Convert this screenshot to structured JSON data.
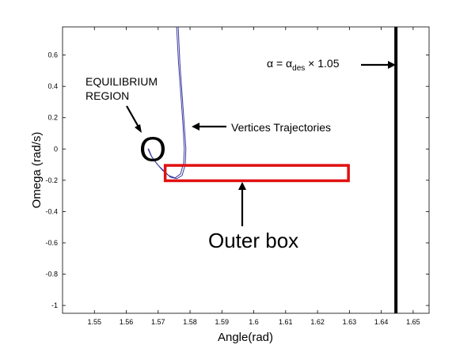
{
  "chart_data": {
    "type": "line",
    "xlabel": "Angle(rad)",
    "ylabel": "Omega (rad/s)",
    "xlim": [
      1.54,
      1.655
    ],
    "ylim": [
      -1.05,
      0.78
    ],
    "xticks": [
      "1.55",
      "1.56",
      "1.57",
      "1.58",
      "1.59",
      "1.6",
      "1.61",
      "1.62",
      "1.63",
      "1.64",
      "1.65"
    ],
    "yticks": [
      "0.6",
      "0.4",
      "0.2",
      "0",
      "-0.2",
      "-0.4",
      "-0.6",
      "-0.8",
      "-1"
    ],
    "grid": false,
    "series": [
      {
        "color": "#3a3aa0",
        "x": [
          1.5763,
          1.5768,
          1.5775,
          1.5782,
          1.5787,
          1.5785,
          1.5775,
          1.5758,
          1.5738,
          1.5718,
          1.5698,
          1.568,
          1.567,
          1.5668
        ],
        "y": [
          0.78,
          0.55,
          0.35,
          0.15,
          0.0,
          -0.1,
          -0.17,
          -0.19,
          -0.18,
          -0.14,
          -0.1,
          -0.05,
          0.0,
          0.0
        ]
      },
      {
        "color": "#3a3aa0",
        "x": [
          1.5758,
          1.5764,
          1.5771,
          1.5778,
          1.5782,
          1.578,
          1.577,
          1.5753,
          1.5733,
          1.5713,
          1.5694,
          1.5677,
          1.5668
        ],
        "y": [
          0.78,
          0.55,
          0.35,
          0.15,
          0.0,
          -0.09,
          -0.16,
          -0.185,
          -0.17,
          -0.135,
          -0.09,
          -0.04,
          0.0
        ]
      }
    ],
    "shapes": [
      {
        "type": "rect",
        "x0": 1.5722,
        "x1": 1.6297,
        "y0": -0.203,
        "y1": -0.105,
        "color": "#e01010"
      },
      {
        "type": "vline",
        "x": 1.6446,
        "color": "#000000"
      },
      {
        "type": "circle",
        "x": 1.5683,
        "y": -0.005,
        "label": "O"
      }
    ],
    "annotations": {
      "equilibrium_line1": "EQUILIBRIUM",
      "equilibrium_line2": "REGION",
      "vertices": "Vertices Trajectories",
      "outer_box": "Outer box",
      "alpha_main": "α = α",
      "alpha_sub": "des",
      "alpha_tail": " × 1.05"
    }
  }
}
